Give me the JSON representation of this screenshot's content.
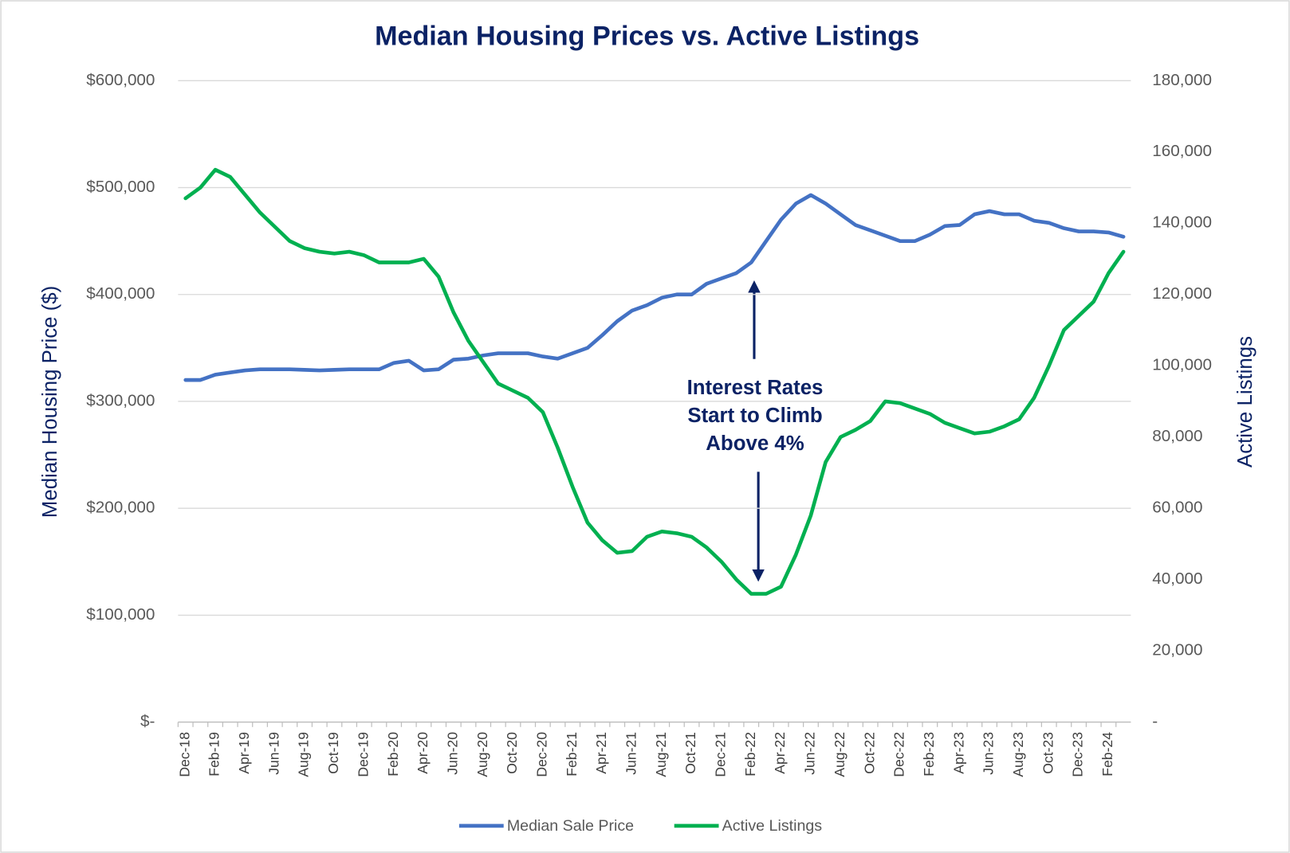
{
  "chart_data": {
    "type": "line",
    "title": "Median Housing Prices vs. Active Listings",
    "ylabel": "Median Housing Price ($)",
    "y2label": "Active Listings",
    "annotation": [
      "Interest Rates",
      "Start to Climb",
      "Above 4%"
    ],
    "categories": [
      "Dec-18",
      null,
      "Feb-19",
      null,
      "Apr-19",
      null,
      "Jun-19",
      null,
      "Aug-19",
      null,
      "Oct-19",
      null,
      "Dec-19",
      null,
      "Feb-20",
      null,
      "Apr-20",
      null,
      "Jun-20",
      null,
      "Aug-20",
      null,
      "Oct-20",
      null,
      "Dec-20",
      null,
      "Feb-21",
      null,
      "Apr-21",
      null,
      "Jun-21",
      null,
      "Aug-21",
      null,
      "Oct-21",
      null,
      "Dec-21",
      null,
      "Feb-22",
      null,
      "Apr-22",
      null,
      "Jun-22",
      null,
      "Aug-22",
      null,
      "Oct-22",
      null,
      "Dec-22",
      null,
      "Feb-23",
      null,
      "Apr-23",
      null,
      "Jun-23",
      null,
      "Aug-23",
      null,
      "Oct-23",
      null,
      "Dec-23",
      null,
      "Feb-24",
      null
    ],
    "series": [
      {
        "name": "Median Sale Price",
        "color": "#4472c4",
        "axis": "y",
        "values": [
          320000,
          320000,
          325000,
          327000,
          329000,
          330000,
          330000,
          330000,
          329500,
          329000,
          329500,
          330000,
          330000,
          330000,
          336000,
          338000,
          329000,
          330000,
          339000,
          340000,
          343000,
          345000,
          345000,
          345000,
          342000,
          340000,
          345000,
          350000,
          362000,
          375000,
          385000,
          390000,
          397000,
          400000,
          400000,
          410000,
          415000,
          420000,
          430000,
          450000,
          470000,
          485000,
          493000,
          485000,
          475000,
          465000,
          460000,
          455000,
          450000,
          450000,
          456000,
          464000,
          465000,
          475000,
          478000,
          475000,
          475000,
          469000,
          467000,
          462000,
          459000,
          459000,
          458000,
          454000
        ]
      },
      {
        "name": "Active Listings",
        "color": "#00b050",
        "axis": "y2",
        "values": [
          147000,
          150000,
          155000,
          153000,
          148000,
          143000,
          139000,
          135000,
          133000,
          132000,
          131500,
          132000,
          131000,
          129000,
          129000,
          129000,
          130000,
          125000,
          115000,
          107000,
          101000,
          95000,
          93000,
          91000,
          87000,
          77000,
          66000,
          56000,
          51000,
          47500,
          48000,
          52000,
          53500,
          53000,
          52000,
          49000,
          45000,
          40000,
          36000,
          36000,
          38000,
          47000,
          58000,
          73000,
          80000,
          82000,
          84500,
          90000,
          89500,
          88000,
          86500,
          84000,
          82500,
          81000,
          81500,
          83000,
          85000,
          91000,
          100000,
          110000,
          114000,
          118000,
          126000,
          132000
        ]
      }
    ],
    "ylim": [
      0,
      600000
    ],
    "yticks": [
      {
        "value": 0,
        "label": "$-"
      },
      {
        "value": 100000,
        "label": "$100,000"
      },
      {
        "value": 200000,
        "label": "$200,000"
      },
      {
        "value": 300000,
        "label": "$300,000"
      },
      {
        "value": 400000,
        "label": "$400,000"
      },
      {
        "value": 500000,
        "label": "$500,000"
      },
      {
        "value": 600000,
        "label": "$600,000"
      }
    ],
    "y2lim": [
      0,
      180000
    ],
    "y2ticks": [
      {
        "value": 0,
        "label": "-"
      },
      {
        "value": 20000,
        "label": "20,000"
      },
      {
        "value": 40000,
        "label": "40,000"
      },
      {
        "value": 60000,
        "label": "60,000"
      },
      {
        "value": 80000,
        "label": "80,000"
      },
      {
        "value": 100000,
        "label": "100,000"
      },
      {
        "value": 120000,
        "label": "120,000"
      },
      {
        "value": 140000,
        "label": "140,000"
      },
      {
        "value": 160000,
        "label": "160,000"
      },
      {
        "value": 180000,
        "label": "180,000"
      }
    ],
    "grid": true,
    "legend": "bottom"
  }
}
